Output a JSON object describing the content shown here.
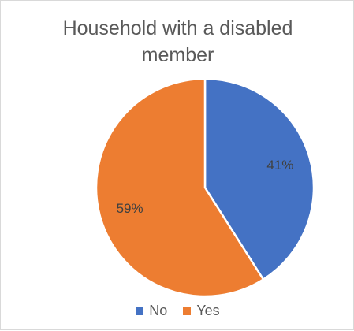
{
  "chart_data": {
    "type": "pie",
    "title_lines": [
      "Household with a disabled",
      "member"
    ],
    "slices": [
      {
        "label": "No",
        "value": 41,
        "display": "41%",
        "color": "#4472C4"
      },
      {
        "label": "Yes",
        "value": 59,
        "display": "59%",
        "color": "#ED7D31"
      }
    ],
    "legend_position": "bottom",
    "start_angle_deg": 0,
    "direction": "clockwise"
  }
}
